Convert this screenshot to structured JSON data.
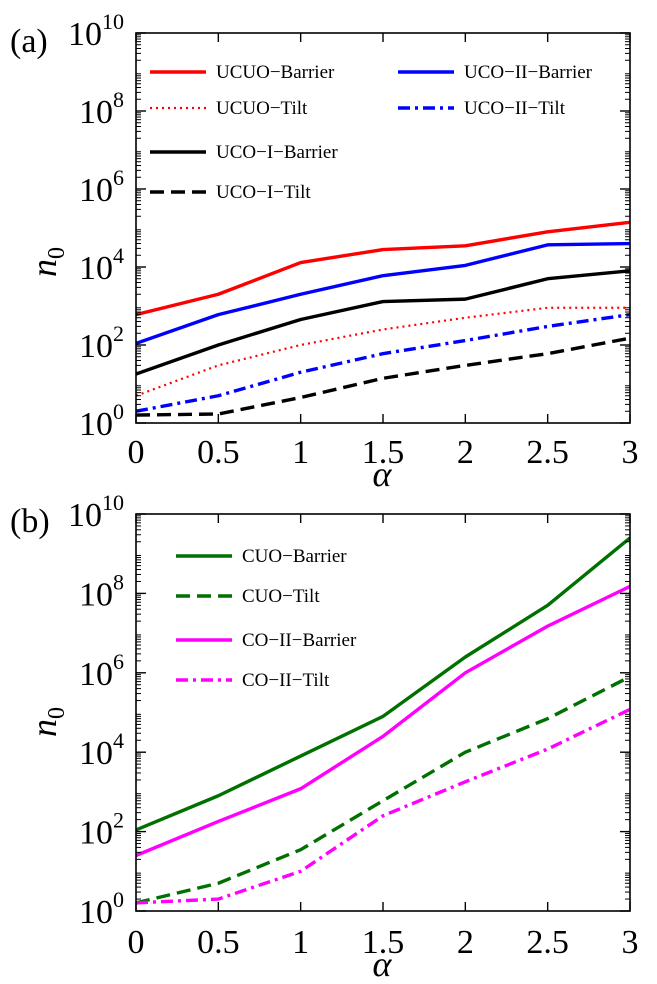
{
  "chart_data": [
    {
      "type": "line",
      "panel_label": "(a)",
      "xlabel": "α",
      "ylabel": "n",
      "ylabel_sub": "0",
      "yscale": "log",
      "xlim": [
        0,
        3
      ],
      "ylim": [
        1,
        10000000000
      ],
      "x_ticks": [
        {
          "value": 0,
          "label": "0"
        },
        {
          "value": 0.5,
          "label": "0.5"
        },
        {
          "value": 1,
          "label": "1"
        },
        {
          "value": 1.5,
          "label": "1.5"
        },
        {
          "value": 2,
          "label": "2"
        },
        {
          "value": 2.5,
          "label": "2.5"
        },
        {
          "value": 3,
          "label": "3"
        }
      ],
      "y_ticks": [
        {
          "value": 1,
          "base": "10",
          "exp": "0"
        },
        {
          "value": 100,
          "base": "10",
          "exp": "2"
        },
        {
          "value": 10000,
          "base": "10",
          "exp": "4"
        },
        {
          "value": 1000000,
          "base": "10",
          "exp": "6"
        },
        {
          "value": 100000000,
          "base": "10",
          "exp": "8"
        },
        {
          "value": 10000000000,
          "base": "10",
          "exp": "10"
        }
      ],
      "grid": false,
      "legend_placement": "top",
      "x": [
        0,
        0.5,
        1,
        1.5,
        2,
        2.5,
        3
      ],
      "series": [
        {
          "name": "UCUO−Barrier",
          "color": "#ff0000",
          "dash": "solid",
          "values": [
            600,
            2000,
            13000,
            28000,
            35000,
            80000,
            140000
          ]
        },
        {
          "name": "UCUO−Tilt",
          "color": "#ff0000",
          "dash": "dotted",
          "values": [
            5,
            30,
            100,
            250,
            500,
            900,
            900
          ]
        },
        {
          "name": "UCO−I−Barrier",
          "color": "#000000",
          "dash": "solid",
          "values": [
            18,
            100,
            450,
            1300,
            1500,
            5000,
            8000
          ]
        },
        {
          "name": "UCO−I−Tilt",
          "color": "#000000",
          "dash": "dashed",
          "values": [
            1.6,
            1.7,
            4.5,
            14,
            30,
            60,
            150
          ]
        },
        {
          "name": "UCO−II−Barrier",
          "color": "#0000ff",
          "dash": "solid",
          "values": [
            110,
            600,
            2000,
            6000,
            11000,
            37000,
            40000
          ]
        },
        {
          "name": "UCO−II−Tilt",
          "color": "#0000ff",
          "dash": "dashdot",
          "values": [
            2,
            5,
            20,
            60,
            130,
            300,
            600
          ]
        }
      ]
    },
    {
      "type": "line",
      "panel_label": "(b)",
      "xlabel": "α",
      "ylabel": "n",
      "ylabel_sub": "0",
      "yscale": "log",
      "xlim": [
        0,
        3
      ],
      "ylim": [
        1,
        10000000000
      ],
      "x_ticks": [
        {
          "value": 0,
          "label": "0"
        },
        {
          "value": 0.5,
          "label": "0.5"
        },
        {
          "value": 1,
          "label": "1"
        },
        {
          "value": 1.5,
          "label": "1.5"
        },
        {
          "value": 2,
          "label": "2"
        },
        {
          "value": 2.5,
          "label": "2.5"
        },
        {
          "value": 3,
          "label": "3"
        }
      ],
      "y_ticks": [
        {
          "value": 1,
          "base": "10",
          "exp": "0"
        },
        {
          "value": 100,
          "base": "10",
          "exp": "2"
        },
        {
          "value": 10000,
          "base": "10",
          "exp": "4"
        },
        {
          "value": 1000000,
          "base": "10",
          "exp": "6"
        },
        {
          "value": 100000000,
          "base": "10",
          "exp": "8"
        },
        {
          "value": 10000000000,
          "base": "10",
          "exp": "10"
        }
      ],
      "grid": false,
      "legend_placement": "top-left",
      "x": [
        0,
        0.5,
        1,
        1.5,
        2,
        2.5,
        3
      ],
      "series": [
        {
          "name": "CUO−Barrier",
          "color": "#007000",
          "dash": "solid",
          "values": [
            110,
            800,
            8000,
            80000,
            2500000,
            50000000,
            2500000000
          ]
        },
        {
          "name": "CUO−Tilt",
          "color": "#007000",
          "dash": "dashed",
          "values": [
            1.6,
            5,
            35,
            600,
            10000,
            70000,
            800000
          ]
        },
        {
          "name": "CO−II−Barrier",
          "color": "#ff00ff",
          "dash": "solid",
          "values": [
            25,
            180,
            1200,
            25000,
            1000000,
            15000000,
            150000000
          ]
        },
        {
          "name": "CO−II−Tilt",
          "color": "#ff00ff",
          "dash": "dashdot",
          "values": [
            1.6,
            2,
            10,
            250,
            1800,
            12000,
            120000
          ]
        }
      ]
    }
  ]
}
